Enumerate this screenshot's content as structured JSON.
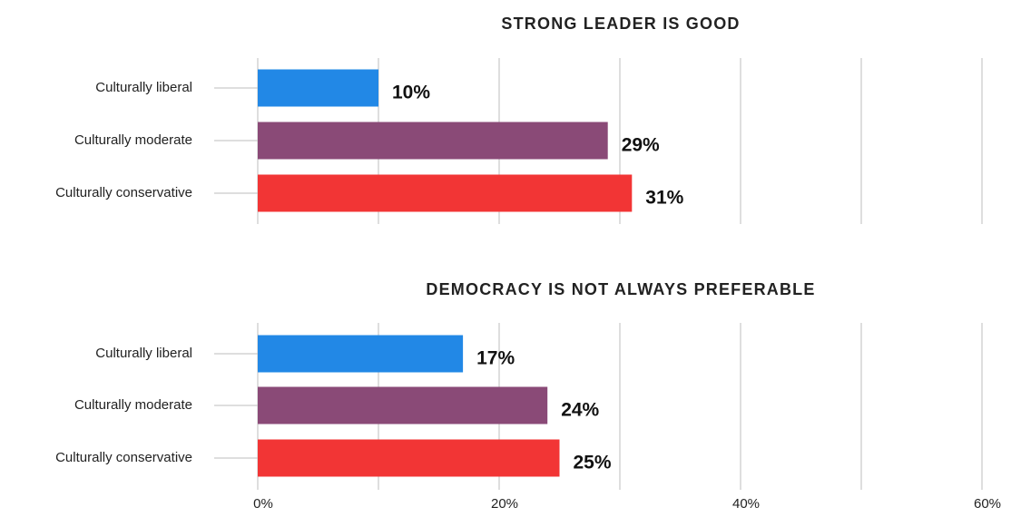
{
  "chart_data": [
    {
      "type": "bar",
      "orientation": "horizontal",
      "title": "STRONG LEADER IS GOOD",
      "categories": [
        "Culturally liberal",
        "Culturally moderate",
        "Culturally conservative"
      ],
      "values": [
        10,
        29,
        31
      ],
      "value_labels": [
        "10%",
        "29%",
        "31%"
      ],
      "colors": [
        "#2288e6",
        "#8a4a77",
        "#f23535"
      ],
      "xlim": [
        0,
        60
      ],
      "grid": true
    },
    {
      "type": "bar",
      "orientation": "horizontal",
      "title": "DEMOCRACY IS NOT ALWAYS PREFERABLE",
      "categories": [
        "Culturally liberal",
        "Culturally moderate",
        "Culturally conservative"
      ],
      "values": [
        17,
        24,
        25
      ],
      "value_labels": [
        "17%",
        "24%",
        "25%"
      ],
      "colors": [
        "#2288e6",
        "#8a4a77",
        "#f23535"
      ],
      "xlim": [
        0,
        60
      ],
      "grid": true
    }
  ],
  "x_axis": {
    "ticks": [
      0,
      20,
      40,
      60
    ],
    "tick_labels": [
      "0%",
      "20%",
      "40%",
      "60%"
    ]
  }
}
